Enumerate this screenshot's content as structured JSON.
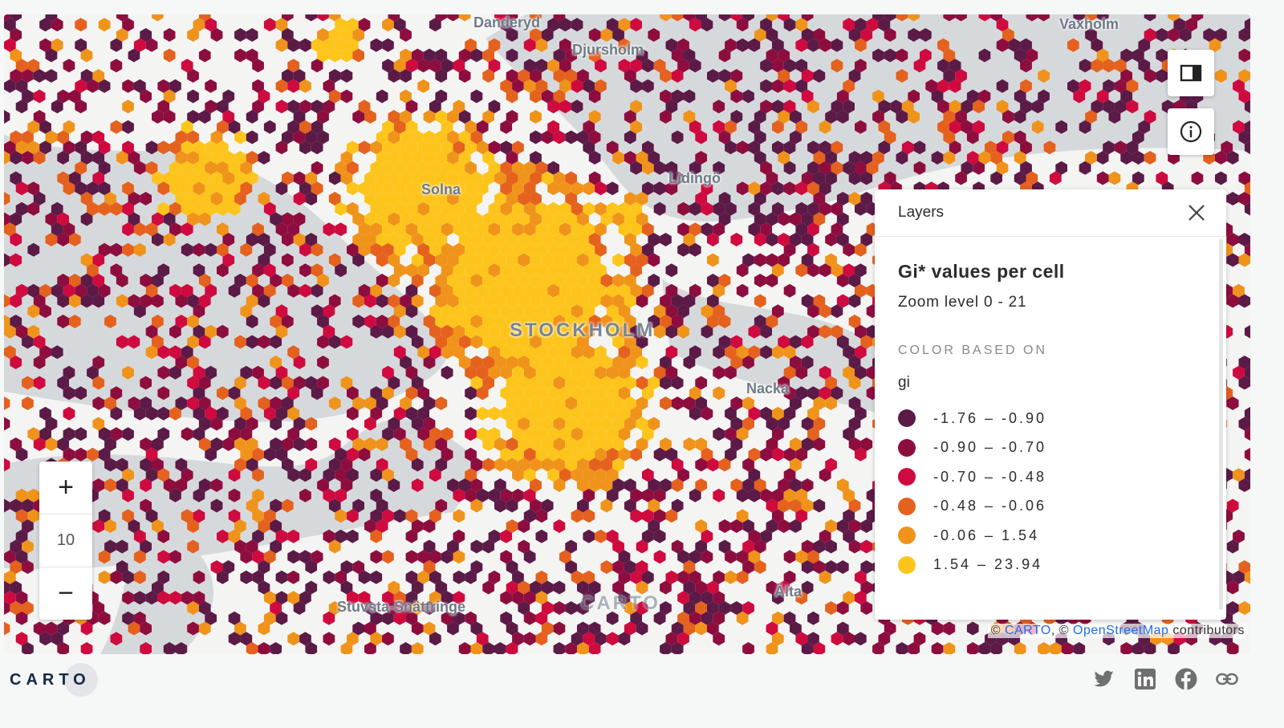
{
  "map": {
    "labels": [
      "Danderyd",
      "Djursholm",
      "Vaxholm",
      "Lidingö",
      "Solna",
      "STOCKHOLM",
      "Nacka",
      "Stuvsta-Snättringe",
      "Älta",
      "CARTO"
    ],
    "zoom_level": "10",
    "zoom_in": "+",
    "zoom_out": "−",
    "palette": [
      "#5c1a47",
      "#8e0d3f",
      "#cf0a3f",
      "#e5611e",
      "#f0931b",
      "#fdc51c"
    ],
    "water_color": "#d6d9dc",
    "land_color": "#f4f5f3"
  },
  "controls": {
    "panel_toggle_icon": "sidebar-icon",
    "info_icon": "info-icon"
  },
  "layers_panel": {
    "header": "Layers",
    "layer_title": "Gi* values per cell",
    "zoom_range": "Zoom level 0 - 21",
    "color_caption": "COLOR BASED ON",
    "attribute": "gi",
    "legend": [
      {
        "label": "-1.76 – -0.90",
        "color": "#5c1a47"
      },
      {
        "label": "-0.90 – -0.70",
        "color": "#8e0d3f"
      },
      {
        "label": "-0.70 – -0.48",
        "color": "#cf0a3f"
      },
      {
        "label": "-0.48 – -0.06",
        "color": "#e5611e"
      },
      {
        "label": "-0.06 – 1.54",
        "color": "#f0931b"
      },
      {
        "label": "1.54 – 23.94",
        "color": "#fdc51c"
      }
    ]
  },
  "attribution": {
    "prefix": "©",
    "carto": "CARTO",
    "sep": ", ©",
    "osm": "OpenStreetMap",
    "suffix": "contributors"
  },
  "footer": {
    "logo": "CARTO",
    "social": [
      "twitter",
      "linkedin",
      "facebook",
      "link"
    ]
  }
}
